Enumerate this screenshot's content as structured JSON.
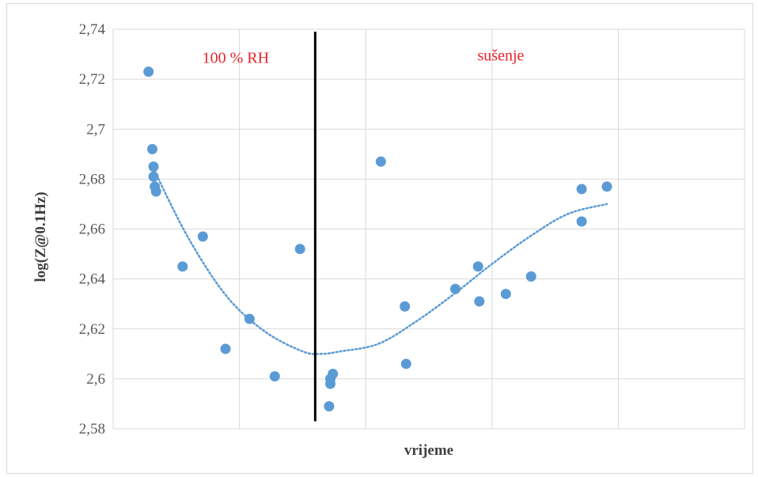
{
  "chart_data": {
    "type": "scatter",
    "title": "",
    "xlabel": "vrijeme",
    "ylabel": "log(Z@0.1Hz)",
    "ylim": [
      2.58,
      2.74
    ],
    "y_ticks": [
      "2,58",
      "2,6",
      "2,62",
      "2,64",
      "2,66",
      "2,68",
      "2,7",
      "2,72",
      "2,74"
    ],
    "xlim": [
      0,
      5
    ],
    "x_gridlines": [
      0,
      1,
      2,
      3,
      4,
      5
    ],
    "x_tick_labels_shown": false,
    "grid": true,
    "legend": "none",
    "colors": {
      "points": "#5b9bd5",
      "trendline": "#5b9bd5",
      "divider": "#000000",
      "annotation": "#e8242c",
      "grid": "#d9d9d9"
    },
    "series": [
      {
        "marker": "circle",
        "x": [
          0.28,
          0.31,
          0.32,
          0.32,
          0.33,
          0.34,
          0.55,
          0.71,
          0.89,
          1.08,
          1.28,
          1.48,
          1.71,
          1.72,
          1.72,
          1.74,
          2.12,
          2.31,
          2.32,
          2.71,
          2.89,
          2.9,
          3.11,
          3.31,
          3.71,
          3.71,
          3.91
        ],
        "y": [
          2.723,
          2.692,
          2.685,
          2.681,
          2.677,
          2.675,
          2.645,
          2.657,
          2.612,
          2.624,
          2.601,
          2.652,
          2.589,
          2.598,
          2.6,
          2.602,
          2.687,
          2.629,
          2.606,
          2.636,
          2.645,
          2.631,
          2.634,
          2.641,
          2.676,
          2.663,
          2.677
        ]
      }
    ],
    "trendline": {
      "style": "dotted",
      "type": "polynomial",
      "x": [
        0.33,
        0.6,
        0.9,
        1.2,
        1.5,
        1.65,
        1.8,
        2.1,
        2.4,
        2.7,
        3.0,
        3.3,
        3.6,
        3.91
      ],
      "y": [
        2.683,
        2.656,
        2.633,
        2.619,
        2.611,
        2.61,
        2.611,
        2.614,
        2.623,
        2.634,
        2.646,
        2.657,
        2.666,
        2.67
      ]
    },
    "divider": {
      "x": 1.6,
      "y_from": 2.583,
      "y_to": 2.739
    },
    "annotations": [
      {
        "text": "100 % RH",
        "x": 0.97,
        "y": 2.7265
      },
      {
        "text": "sušenje",
        "x": 3.07,
        "y": 2.7275
      }
    ]
  }
}
